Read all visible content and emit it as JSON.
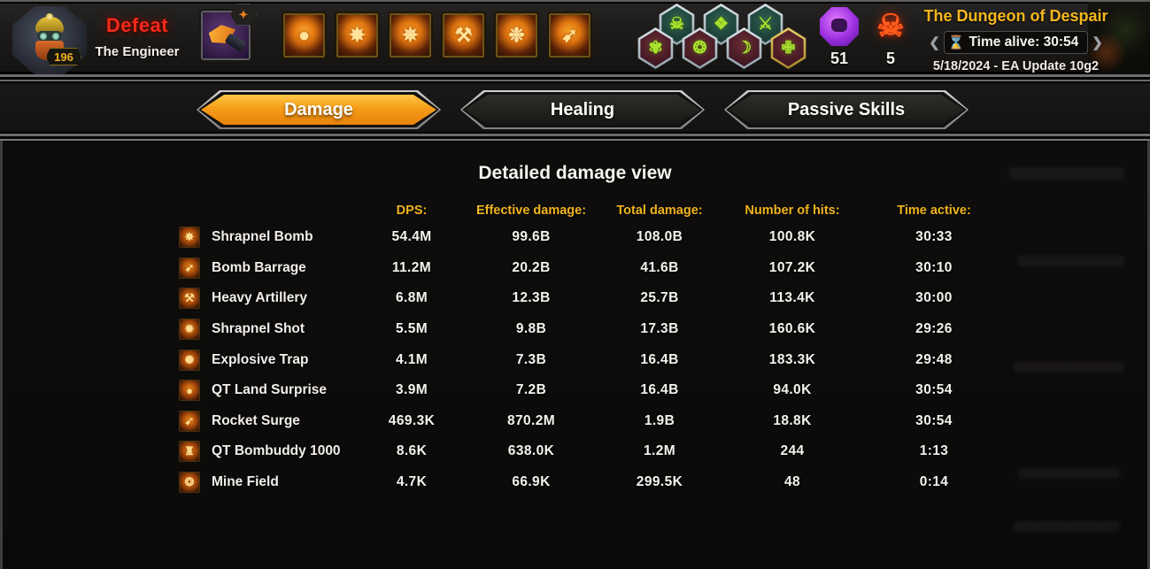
{
  "header": {
    "result": "Defeat",
    "class_name": "The Engineer",
    "level": "196",
    "weapon_badge_glyph": "✦",
    "skills": [
      {
        "name": "bomb-skill",
        "glyph": "●"
      },
      {
        "name": "explosion-burst-skill",
        "glyph": "✸"
      },
      {
        "name": "flaming-flail-skill",
        "glyph": "✵"
      },
      {
        "name": "cannon-skill",
        "glyph": "⚒"
      },
      {
        "name": "spiked-mines-skill",
        "glyph": "❉"
      },
      {
        "name": "rocket-burst-skill",
        "glyph": "➹"
      }
    ],
    "badges_top": [
      {
        "name": "skull-trait-badge",
        "glyph": "☠",
        "variant": "teal"
      },
      {
        "name": "crystal-trait-badge",
        "glyph": "❖",
        "variant": "teal"
      },
      {
        "name": "sword-trait-badge",
        "glyph": "⚔",
        "variant": "teal"
      }
    ],
    "badges_bottom": [
      {
        "name": "phoenix-trait-badge",
        "glyph": "✾",
        "variant": "maroon"
      },
      {
        "name": "swirl-trait-badge",
        "glyph": "❂",
        "variant": "maroon"
      },
      {
        "name": "scythe-trait-badge",
        "glyph": "☽",
        "variant": "maroon"
      },
      {
        "name": "shield-trait-badge",
        "glyph": "✙",
        "variant": "maroon gold"
      }
    ],
    "gem_count": "51",
    "skull_count": "5",
    "skull_glyph": "☠",
    "location": "The Dungeon of Despair",
    "time_alive": "Time alive: 30:54",
    "hourglass_glyph": "⌛",
    "chevron_left": "❮",
    "chevron_right": "❯",
    "version": "5/18/2024 - EA Update 10g2"
  },
  "tabs": [
    {
      "label": "Damage",
      "active": true
    },
    {
      "label": "Healing",
      "active": false
    },
    {
      "label": "Passive Skills",
      "active": false
    }
  ],
  "main": {
    "title": "Detailed damage view",
    "columns": {
      "dps": "DPS:",
      "effective": "Effective damage:",
      "total": "Total damage:",
      "hits": "Number of hits:",
      "time": "Time active:"
    },
    "rows": [
      {
        "glyph": "✸",
        "name": "Shrapnel Bomb",
        "dps": "54.4M",
        "effective": "99.6B",
        "total": "108.0B",
        "hits": "100.8K",
        "time": "30:33"
      },
      {
        "glyph": "➶",
        "name": "Bomb Barrage",
        "dps": "11.2M",
        "effective": "20.2B",
        "total": "41.6B",
        "hits": "107.2K",
        "time": "30:10"
      },
      {
        "glyph": "⚒",
        "name": "Heavy Artillery",
        "dps": "6.8M",
        "effective": "12.3B",
        "total": "25.7B",
        "hits": "113.4K",
        "time": "30:00"
      },
      {
        "glyph": "✹",
        "name": "Shrapnel Shot",
        "dps": "5.5M",
        "effective": "9.8B",
        "total": "17.3B",
        "hits": "160.6K",
        "time": "29:26"
      },
      {
        "glyph": "✺",
        "name": "Explosive Trap",
        "dps": "4.1M",
        "effective": "7.3B",
        "total": "16.4B",
        "hits": "183.3K",
        "time": "29:48"
      },
      {
        "glyph": "●",
        "name": "QT Land Surprise",
        "dps": "3.9M",
        "effective": "7.2B",
        "total": "16.4B",
        "hits": "94.0K",
        "time": "30:54"
      },
      {
        "glyph": "➹",
        "name": "Rocket Surge",
        "dps": "469.3K",
        "effective": "870.2M",
        "total": "1.9B",
        "hits": "18.8K",
        "time": "30:54"
      },
      {
        "glyph": "♜",
        "name": "QT Bombuddy 1000",
        "dps": "8.6K",
        "effective": "638.0K",
        "total": "1.2M",
        "hits": "244",
        "time": "1:13"
      },
      {
        "glyph": "❂",
        "name": "Mine Field",
        "dps": "4.7K",
        "effective": "66.9K",
        "total": "299.5K",
        "hits": "48",
        "time": "0:14"
      }
    ]
  }
}
